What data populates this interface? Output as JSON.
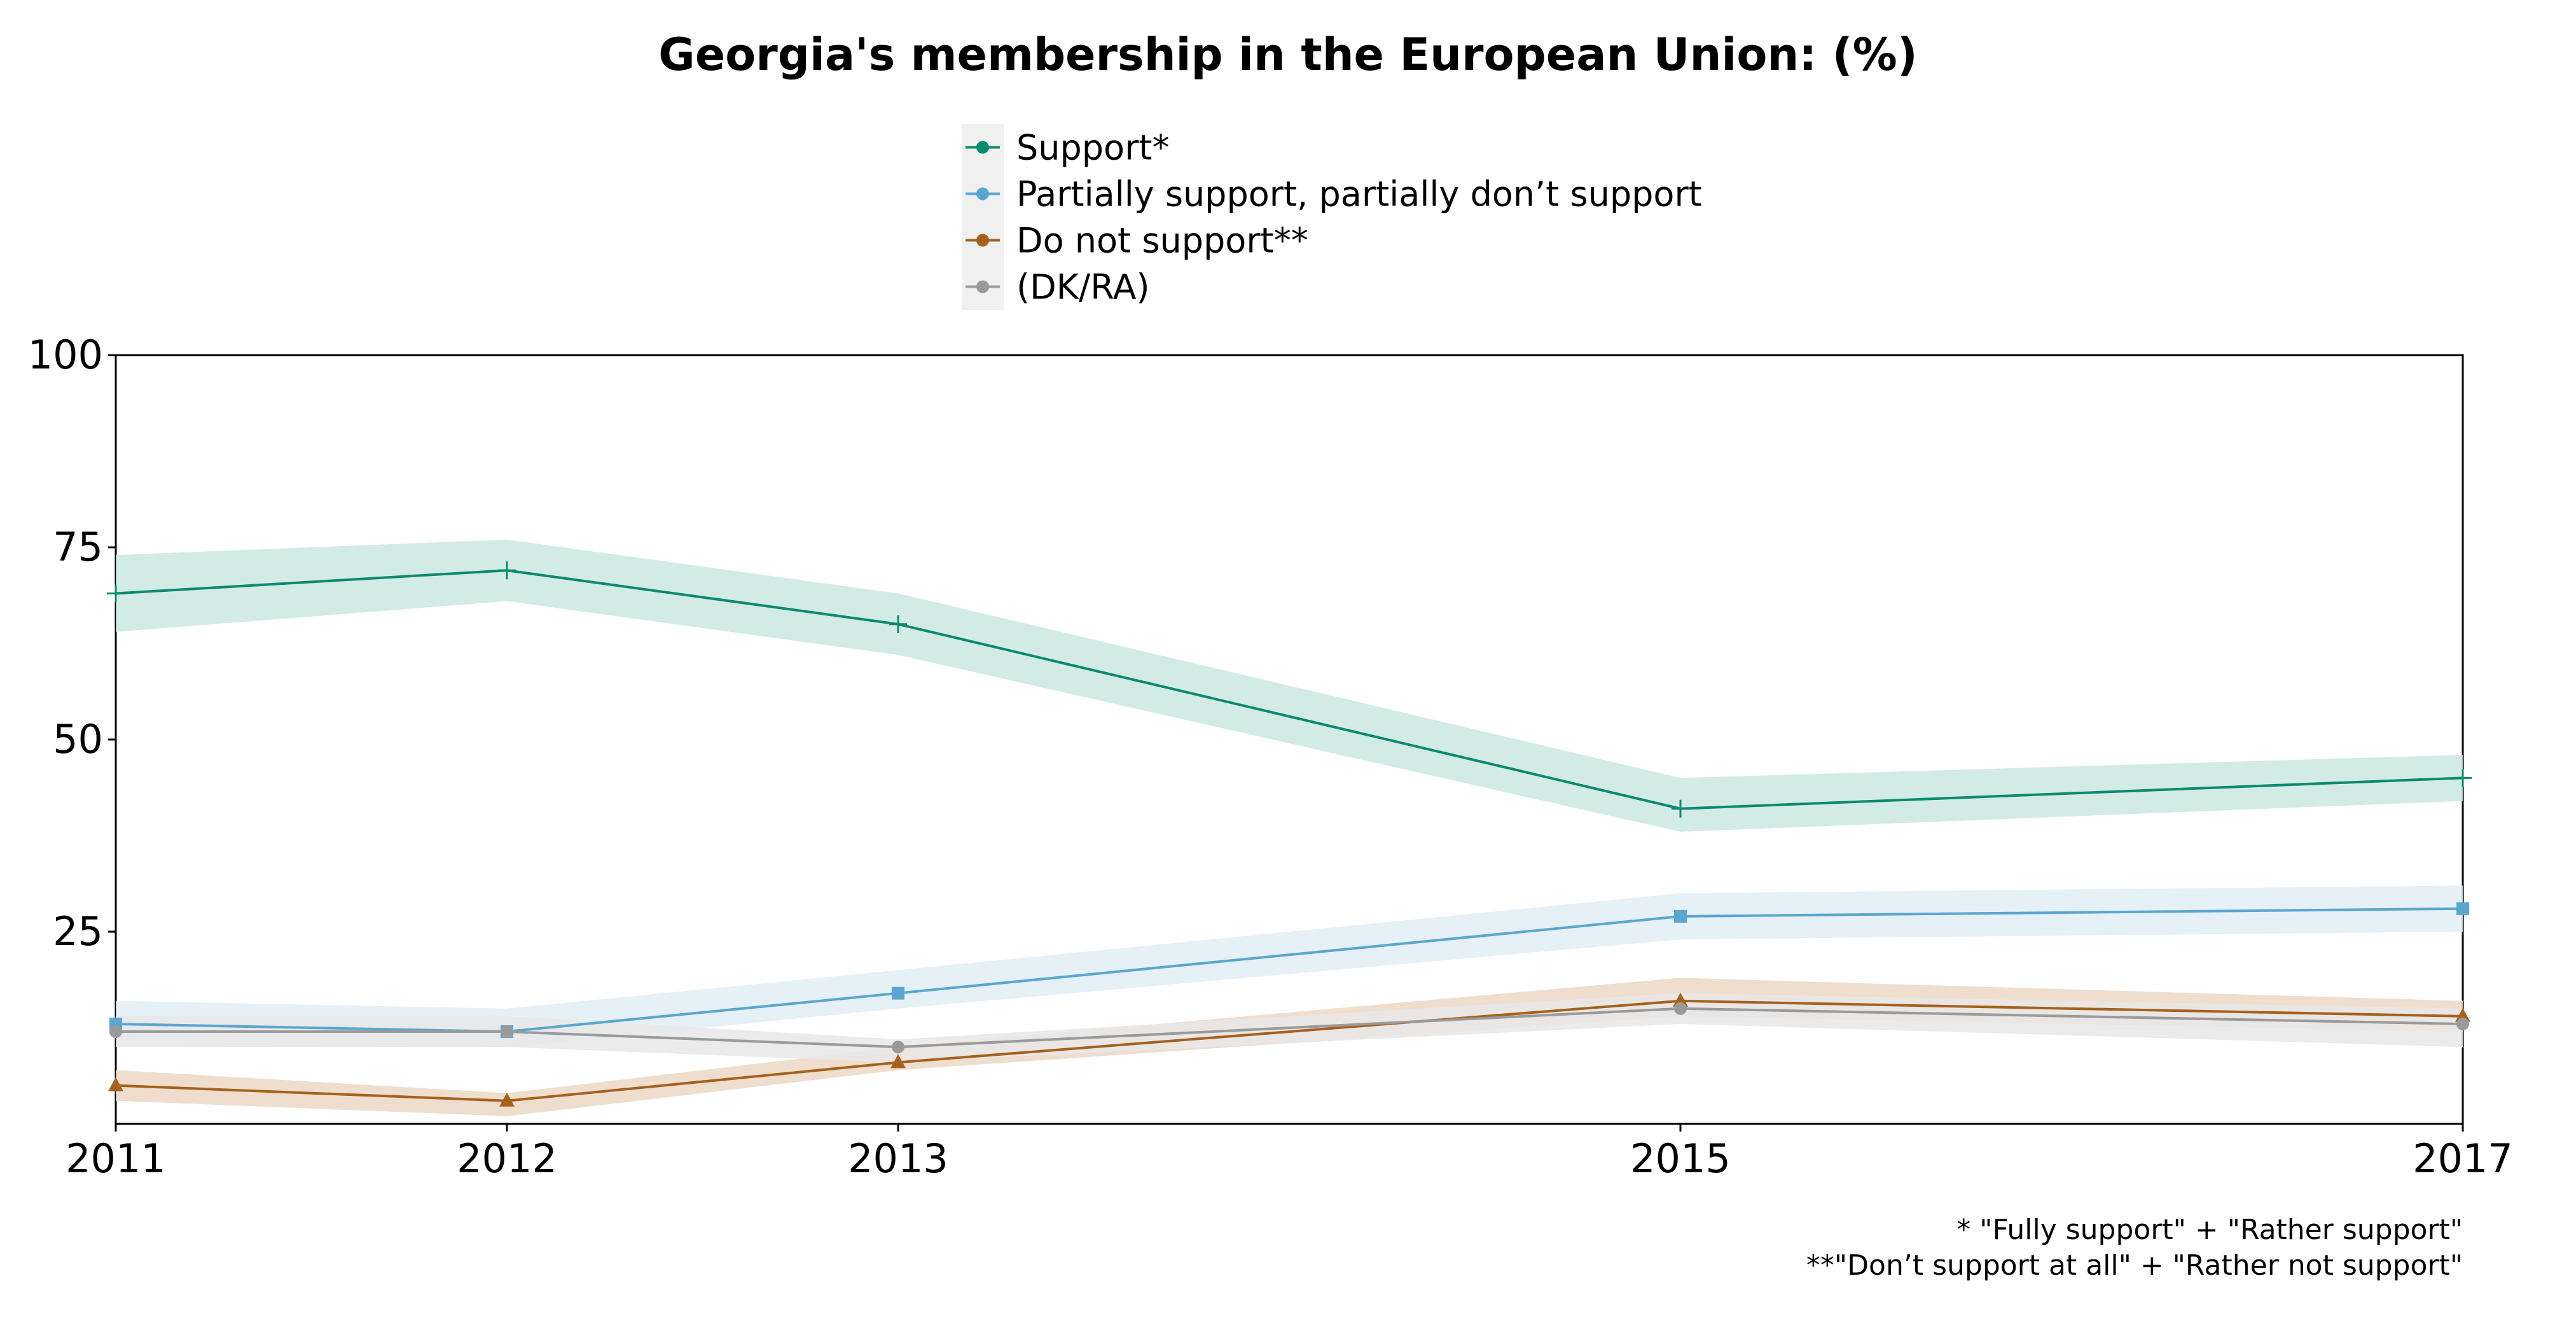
{
  "chart_data": {
    "type": "line",
    "title": "Georgia's membership in the European Union: (%)",
    "xlabel": "",
    "ylabel": "",
    "categories": [
      "2011",
      "2012",
      "2013",
      "2015",
      "2017"
    ],
    "x": [
      2011,
      2012,
      2013,
      2015,
      2017
    ],
    "ylim": [
      0,
      100
    ],
    "yticks": [
      25,
      50,
      75,
      100
    ],
    "grid": false,
    "legend_position": "top-center",
    "series": [
      {
        "name": "Support*",
        "color": "#0b8a6e",
        "band_color": "#cbe7e0",
        "marker": "plus",
        "values": [
          69,
          72,
          65,
          41,
          45
        ],
        "lower": [
          64,
          68,
          61,
          38,
          42
        ],
        "upper": [
          74,
          76,
          69,
          45,
          48
        ]
      },
      {
        "name": "Partially support, partially don’t support",
        "color": "#5ba6cf",
        "band_color": "#e0edf6",
        "marker": "square",
        "values": [
          13,
          12,
          17,
          27,
          28
        ],
        "lower": [
          11,
          10,
          15,
          24,
          25
        ],
        "upper": [
          16,
          15,
          20,
          30,
          31
        ]
      },
      {
        "name": "Do not support**",
        "color": "#a5611d",
        "band_color": "#ecd8c5",
        "marker": "triangle",
        "values": [
          5,
          3,
          8,
          16,
          14
        ],
        "lower": [
          3,
          1,
          7,
          14,
          12
        ],
        "upper": [
          7,
          4,
          10,
          19,
          16
        ]
      },
      {
        "name": "(DK/RA)",
        "color": "#9a9a9a",
        "band_color": "#e7e7e7",
        "marker": "circle",
        "values": [
          12,
          12,
          10,
          15,
          13
        ],
        "lower": [
          10,
          10,
          8,
          13,
          10
        ],
        "upper": [
          14,
          14,
          11,
          17,
          15
        ]
      }
    ],
    "notes": [
      "* \"Fully support\" + \"Rather support\"",
      "**\"Don’t support at all\" + \"Rather not support\""
    ]
  }
}
